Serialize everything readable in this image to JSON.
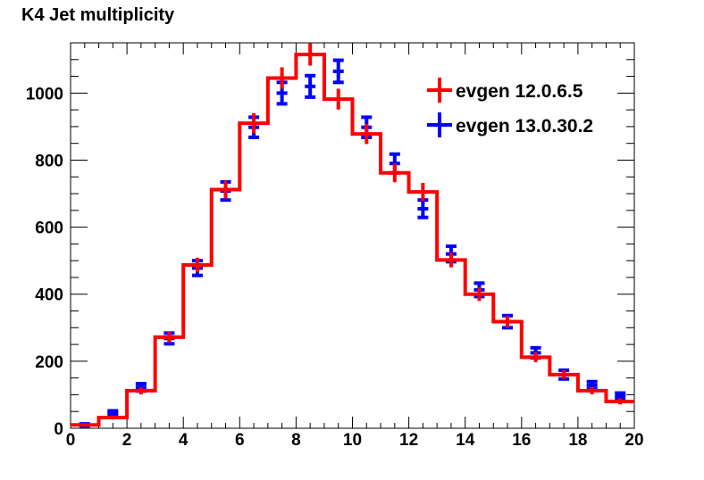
{
  "chart_data": {
    "type": "histogram",
    "title": "K4 Jet multiplicity",
    "xlabel": "",
    "ylabel": "",
    "xlim": [
      0,
      20
    ],
    "ylim": [
      0,
      1150
    ],
    "grid": false,
    "legend_position": "top-right",
    "bin_edges": [
      0,
      1,
      2,
      3,
      4,
      5,
      6,
      7,
      8,
      9,
      10,
      11,
      12,
      13,
      14,
      15,
      16,
      17,
      18,
      19,
      20
    ],
    "x_ticks": [
      0,
      2,
      4,
      6,
      8,
      10,
      12,
      14,
      16,
      18,
      20
    ],
    "x_tick_labels": [
      "0",
      "2",
      "4",
      "6",
      "8",
      "10",
      "12",
      "14",
      "16",
      "18",
      "20"
    ],
    "y_ticks": [
      0,
      200,
      400,
      600,
      800,
      1000
    ],
    "y_tick_labels": [
      "0",
      "200",
      "400",
      "600",
      "800",
      "1000"
    ],
    "series": [
      {
        "name": "evgen 12.0.6.5",
        "color": "#ff0000",
        "style": "histogram-step",
        "values": [
          10,
          32,
          112,
          272,
          487,
          712,
          910,
          1045,
          1115,
          982,
          878,
          762,
          705,
          502,
          400,
          318,
          212,
          160,
          112,
          80
        ],
        "errors": [
          3,
          6,
          11,
          16,
          22,
          27,
          30,
          32,
          33,
          31,
          30,
          28,
          27,
          22,
          20,
          18,
          15,
          13,
          11,
          9
        ]
      },
      {
        "name": "evgen 13.0.30.2",
        "color": "#0000ff",
        "style": "points-errorbars",
        "values": [
          10,
          45,
          122,
          268,
          478,
          708,
          898,
          1000,
          1020,
          1065,
          898,
          790,
          655,
          520,
          413,
          318,
          225,
          160,
          128,
          95
        ],
        "errors": [
          3,
          7,
          11,
          16,
          22,
          27,
          30,
          32,
          32,
          33,
          30,
          28,
          26,
          23,
          20,
          18,
          15,
          13,
          11,
          10
        ]
      }
    ]
  }
}
